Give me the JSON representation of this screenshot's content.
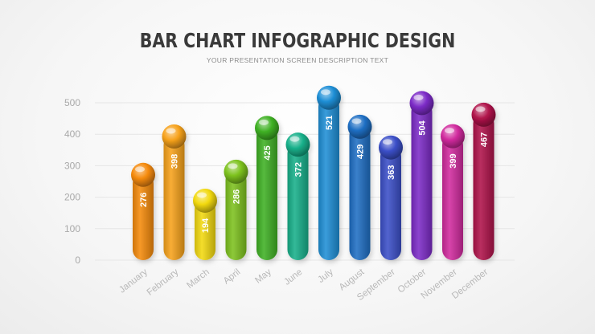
{
  "header": {
    "title": "BAR CHART INFOGRAPHIC DESIGN",
    "subtitle": "YOUR PRESENTATION SCREEN DESCRIPTION TEXT"
  },
  "chart_data": {
    "type": "bar",
    "title": "BAR CHART INFOGRAPHIC DESIGN",
    "subtitle": "YOUR PRESENTATION SCREEN DESCRIPTION TEXT",
    "categories": [
      "January",
      "February",
      "March",
      "April",
      "May",
      "June",
      "July",
      "August",
      "September",
      "October",
      "November",
      "December"
    ],
    "values": [
      276,
      398,
      194,
      286,
      425,
      372,
      521,
      429,
      363,
      504,
      399,
      467
    ],
    "colors": [
      "#f58a0b",
      "#f7a21b",
      "#f2d90f",
      "#7dc21e",
      "#3fb124",
      "#17b08a",
      "#1f8fd6",
      "#1f6fc4",
      "#3b4fc8",
      "#7c2bc7",
      "#d12a9e",
      "#b0134a"
    ],
    "yticks": [
      0,
      100,
      200,
      300,
      400,
      500
    ],
    "ylim": [
      0,
      500
    ],
    "grid": true,
    "data_labels": true,
    "legend": "none"
  }
}
